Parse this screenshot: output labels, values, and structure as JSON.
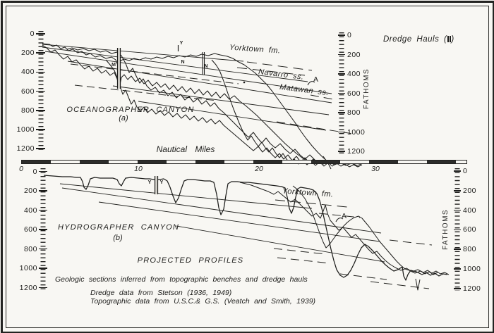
{
  "colors": {
    "paper": "#f8f7f3",
    "ink": "#1d1d1b"
  },
  "legend": {
    "label": "Dredge Hauls",
    "paren_open": "(",
    "paren_close": ")",
    "symbol": "dredge-haul-double-bar"
  },
  "fathoms_label": "FATHOMS",
  "x_axis": {
    "label": "Nautical Miles",
    "tick_labels": [
      "0",
      "10",
      "20",
      "30"
    ]
  },
  "fathom_axis_tick_labels": [
    "0",
    "200",
    "400",
    "600",
    "800",
    "1000",
    "1200"
  ],
  "panel_a": {
    "title": "OCEANOGRAPHER CANYON",
    "tag": "(a)",
    "yorktown": "Yorktown fm.",
    "navarro": "Navarro ss.",
    "matawan": "Matawan ss.",
    "marker": "A",
    "dredge_letters": [
      "M",
      "Y",
      "N",
      "N"
    ]
  },
  "panel_b": {
    "title": "HYDROGRAPHER CANYON",
    "tag": "(b)",
    "yorktown": "Yorktown fm.",
    "marker": "A",
    "dredge_letters": [
      "Y",
      "Y"
    ]
  },
  "captions": {
    "projected": "PROJECTED PROFILES",
    "line1": "Geologic sections inferred from topographic benches and dredge hauls",
    "line2": "Dredge data from Stetson (1936, 1949)",
    "line3": "Topographic data from U.S.C.& G.S. (Veatch and Smith, 1939)"
  }
}
